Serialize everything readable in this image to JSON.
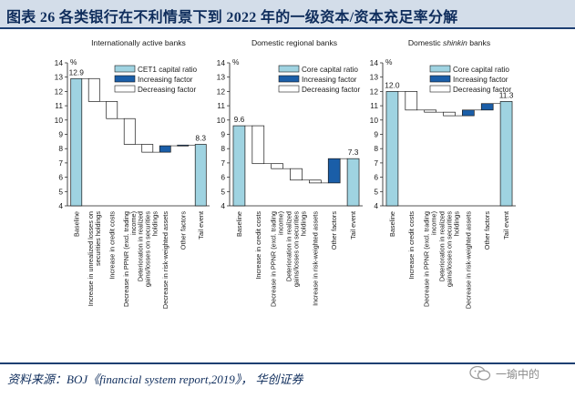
{
  "header": {
    "title": "图表 26   各类银行在不利情景下到 2022 年的一级资本/资本充足率分解"
  },
  "footer": {
    "source": "资料来源：BOJ《financial system report,2019》， 华创证券",
    "watermark": "一瑜中的"
  },
  "colors": {
    "base_fill": "#9fd3e1",
    "increase_fill": "#1a5ea8",
    "decrease_fill": "#ffffff",
    "bar_stroke": "#1a1a1a",
    "title_band": "#d3dde9",
    "title_text": "#0f2d5c"
  },
  "chart_data": [
    {
      "type": "waterfall",
      "title": "Internationally active banks",
      "unit": "%",
      "ylim": [
        4,
        14
      ],
      "yticks": [
        4,
        5,
        6,
        7,
        8,
        9,
        10,
        11,
        12,
        13,
        14
      ],
      "legend": [
        "CET1 capital ratio",
        "Increasing factor",
        "Decreasing factor"
      ],
      "categories": [
        "Baseline",
        "Increase in unrealized losses on securities holdings",
        "Increase in credit costs",
        "Decrease in PPNR (excl. trading income)",
        "Deterioration in realized gains/losses on securities holdings",
        "Decrease in risk-weighted assets",
        "Other factors",
        "Tail event"
      ],
      "values": [
        12.9,
        -1.6,
        -1.2,
        -1.8,
        -0.55,
        0.45,
        0.05,
        8.3
      ],
      "kinds": [
        "total",
        "delta",
        "delta",
        "delta",
        "delta",
        "delta",
        "delta",
        "total"
      ],
      "data_labels": {
        "first": "12.9",
        "last": "8.3"
      }
    },
    {
      "type": "waterfall",
      "title": "Domestic regional banks",
      "unit": "%",
      "ylim": [
        4,
        14
      ],
      "yticks": [
        4,
        5,
        6,
        7,
        8,
        9,
        10,
        11,
        12,
        13,
        14
      ],
      "legend": [
        "Core capital ratio",
        "Increasing factor",
        "Decreasing factor"
      ],
      "categories": [
        "Baseline",
        "Increase in credit costs",
        "Decrease in PPNR (excl. trading income)",
        "Deterioration in realized gains/losses on securities holdings",
        "Increase in risk-weighted assets",
        "Other factors",
        "Tail event"
      ],
      "values": [
        9.6,
        -2.65,
        -0.35,
        -0.8,
        -0.2,
        1.7,
        7.3
      ],
      "kinds": [
        "total",
        "delta",
        "delta",
        "delta",
        "delta",
        "delta",
        "total"
      ],
      "data_labels": {
        "first": "9.6",
        "last": "7.3"
      }
    },
    {
      "type": "waterfall",
      "title_parts": [
        "Domestic ",
        "shinkin",
        " banks"
      ],
      "unit": "%",
      "ylim": [
        4,
        14
      ],
      "yticks": [
        4,
        5,
        6,
        7,
        8,
        9,
        10,
        11,
        12,
        13,
        14
      ],
      "legend": [
        "Core capital ratio",
        "Increasing factor",
        "Decreasing factor"
      ],
      "categories": [
        "Baseline",
        "Increase in credit costs",
        "Decrease in PPNR (excl. trading income)",
        "Deterioration in realized gains/losses on securities holdings",
        "Decrease in risk-weighted assets",
        "Other factors",
        "Tail event"
      ],
      "values": [
        12.0,
        -1.3,
        -0.15,
        -0.25,
        0.4,
        0.45,
        11.3
      ],
      "kinds": [
        "total",
        "delta",
        "delta",
        "delta",
        "delta",
        "delta",
        "total"
      ],
      "data_labels": {
        "first": "12.0",
        "last": "11.3"
      }
    }
  ]
}
